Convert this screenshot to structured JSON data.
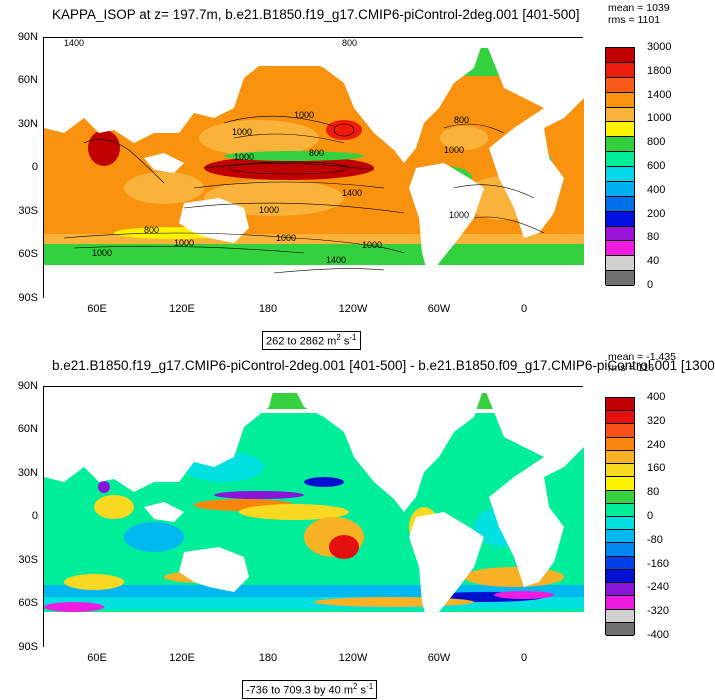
{
  "panels": [
    {
      "title": "KAPPA_ISOP at z= 197.7m, b.e21.B1850.f19_g17.CMIP6-piControl-2deg.001 [401-500]",
      "mean": "mean = 1039",
      "rms": "rms = 1101",
      "range_text": "262 to 2862",
      "units_main": " m",
      "units_exp2": "2",
      "units_s": " s",
      "units_exp1": "-1",
      "lat_labels": [
        "90N",
        "60N",
        "30N",
        "0",
        "30S",
        "60S",
        "90S"
      ],
      "lon_labels": [
        "60E",
        "120E",
        "180",
        "120W",
        "60W",
        "0"
      ],
      "colorbar_labels": [
        "3000",
        "1800",
        "1400",
        "1000",
        "800",
        "600",
        "400",
        "200",
        "80",
        "40",
        "0"
      ],
      "colorbar_colors": [
        "#c00000",
        "#ee1c0c",
        "#f75c1a",
        "#f8920f",
        "#f9b33a",
        "#fff200",
        "#33d13f",
        "#00ee9a",
        "#00d8e8",
        "#00b0f0",
        "#0070e8",
        "#0010e0",
        "#9a14d8",
        "#ee1ce0",
        "#d0d0d0",
        "#707070"
      ],
      "contour_labels": [
        "1400",
        "800",
        "1000",
        "1000",
        "1000",
        "1400",
        "1000",
        "800",
        "1000",
        "1000",
        "800",
        "1000",
        "1000",
        "1400",
        "1000",
        "800",
        "1000"
      ]
    },
    {
      "title": "b.e21.B1850.f19_g17.CMIP6-piControl-2deg.001 [401-500] - b.e21.B1850.f09_g17.CMIP6-piControl.001 [1300",
      "mean": "mean = -1.435",
      "rms": "rms = 116",
      "range_text": "-736 to 709.3 by 40",
      "units_main": " m",
      "units_exp2": "2",
      "units_s": " s",
      "units_exp1": "-1",
      "lat_labels": [
        "90N",
        "60N",
        "30N",
        "0",
        "30S",
        "60S",
        "90S"
      ],
      "lon_labels": [
        "60E",
        "120E",
        "180",
        "120W",
        "60W",
        "0"
      ],
      "colorbar_labels": [
        "400",
        "320",
        "240",
        "160",
        "80",
        "0",
        "-80",
        "-160",
        "-240",
        "-320",
        "-400"
      ],
      "colorbar_colors": [
        "#c00000",
        "#e41010",
        "#f85018",
        "#f8860c",
        "#f8b024",
        "#f8d820",
        "#fff200",
        "#36d040",
        "#00ee9a",
        "#00e0e0",
        "#00b8f0",
        "#0088f0",
        "#0040e8",
        "#0010d0",
        "#8a14d8",
        "#ee1ce0",
        "#d0d0d0",
        "#707070"
      ]
    }
  ]
}
